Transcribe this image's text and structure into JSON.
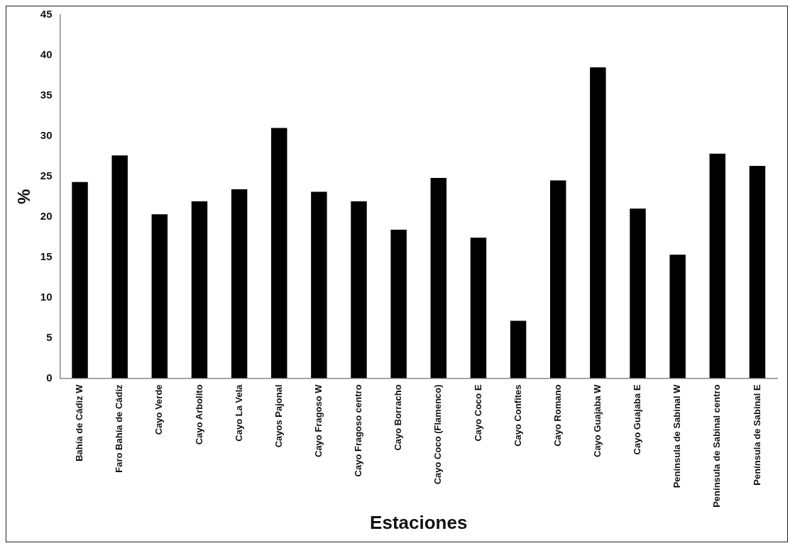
{
  "chart_data": {
    "type": "bar",
    "xlabel": "Estaciones",
    "ylabel": "%",
    "categories": [
      "Bahía de Cádiz W",
      "Faro Bahía de Cádiz",
      "Cayo Verde",
      "Cayo Arbolito",
      "Cayo La Vela",
      "Cayos Pajonal",
      "Cayo Fragoso W",
      "Cayo Fragoso centro",
      "Cayo Borracho",
      "Cayo Coco (Flamenco)",
      "Cayo Coco E",
      "Cayo Confites",
      "Cayo Romano",
      "Cayo Guajaba W",
      "Cayo Guajaba E",
      "Península de Sabinal W",
      "Península de Sabinal centro",
      "Península de Sabinal E"
    ],
    "values": [
      24.3,
      27.6,
      20.3,
      21.9,
      23.4,
      31.0,
      23.1,
      21.9,
      18.4,
      24.8,
      17.4,
      7.1,
      24.5,
      38.5,
      21.0,
      15.3,
      27.8,
      26.3
    ],
    "color": "#000000",
    "ylim": [
      0,
      45
    ],
    "yticks": [
      0,
      5,
      10,
      15,
      20,
      25,
      30,
      35,
      40,
      45
    ],
    "grid": false,
    "legend": false
  }
}
